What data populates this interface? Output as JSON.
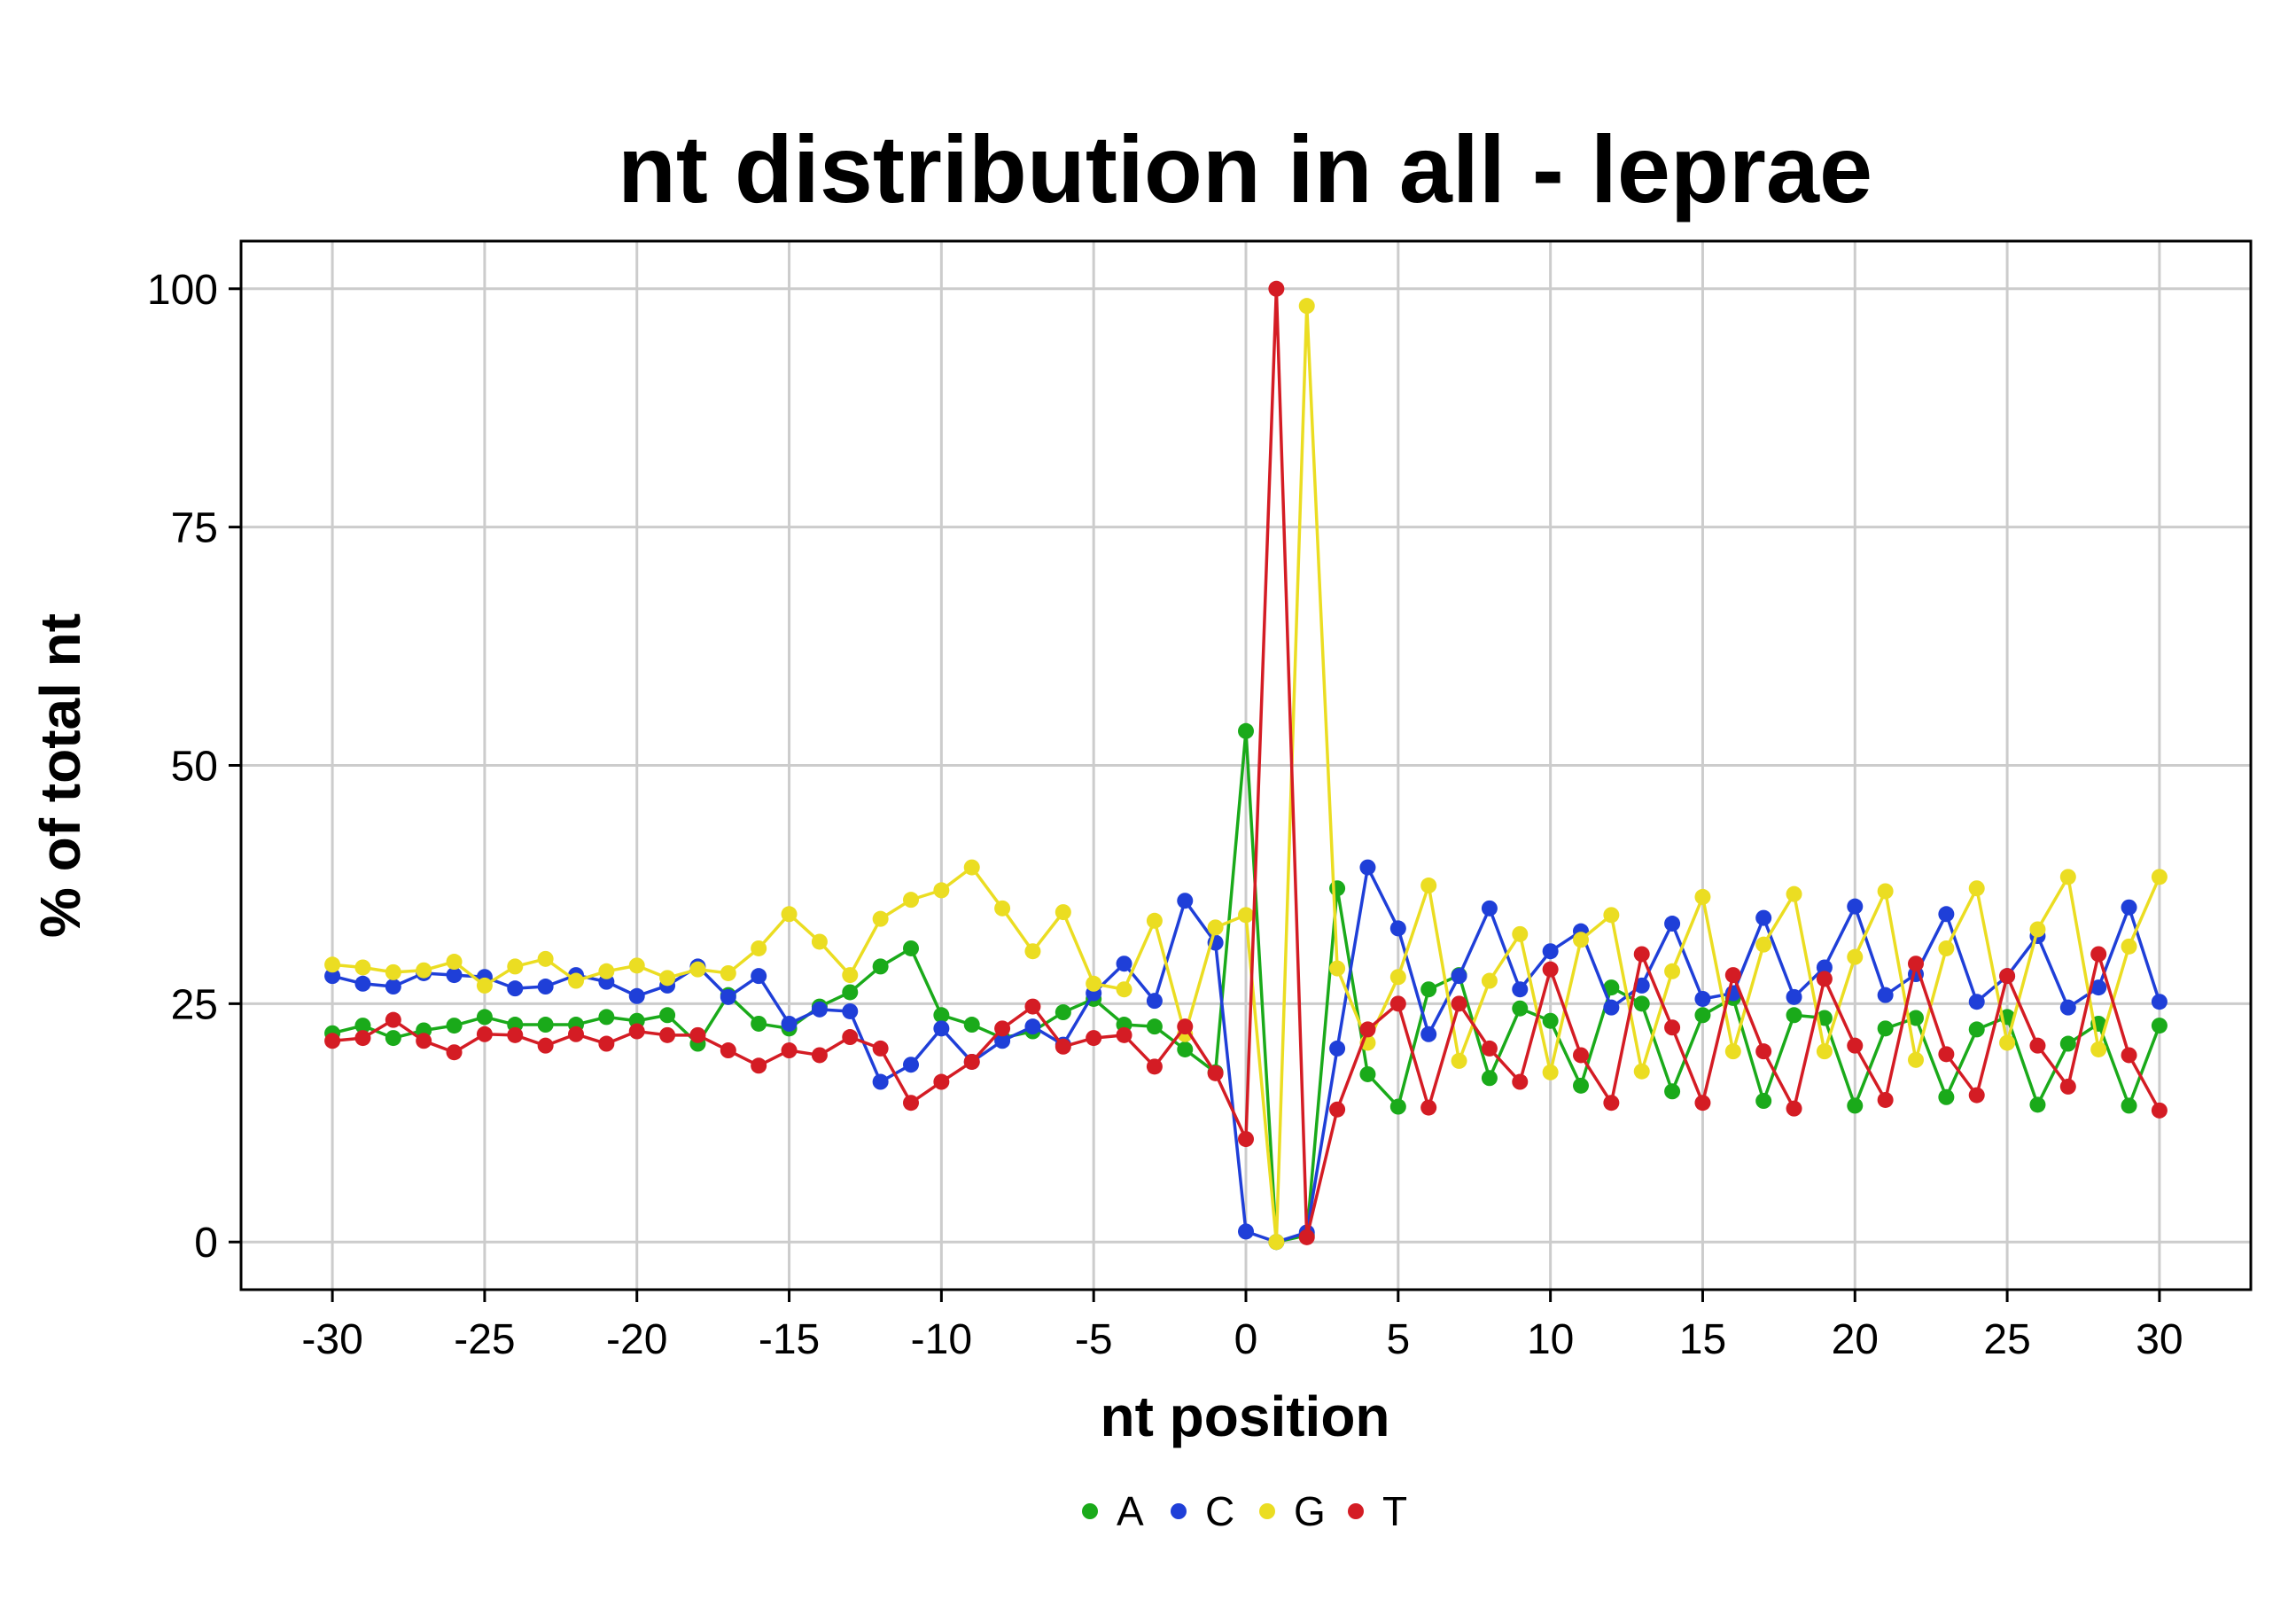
{
  "chart_data": {
    "type": "line",
    "title": "nt distribution in all - leprae",
    "xlabel": "nt position",
    "ylabel": "% of total nt",
    "xlim": [
      -33,
      33
    ],
    "ylim": [
      -5,
      105
    ],
    "x_ticks": [
      -30,
      -25,
      -20,
      -15,
      -10,
      -5,
      0,
      5,
      10,
      15,
      20,
      25,
      30
    ],
    "y_ticks": [
      0,
      25,
      50,
      75,
      100
    ],
    "grid": true,
    "legend_position": "bottom",
    "x": [
      -30,
      -29,
      -28,
      -27,
      -26,
      -25,
      -24,
      -23,
      -22,
      -21,
      -20,
      -19,
      -18,
      -17,
      -16,
      -15,
      -14,
      -13,
      -12,
      -11,
      -10,
      -9,
      -8,
      -7,
      -6,
      -5,
      -4,
      -3,
      -2,
      -1,
      0,
      1,
      2,
      3,
      4,
      5,
      6,
      7,
      8,
      9,
      10,
      11,
      12,
      13,
      14,
      15,
      16,
      17,
      18,
      19,
      20,
      21,
      22,
      23,
      24,
      25,
      26,
      27,
      28,
      29,
      30
    ],
    "series": [
      {
        "name": "A",
        "color": "#1aaa1a",
        "values": [
          21.9,
          22.7,
          21.4,
          22.2,
          22.7,
          23.6,
          22.8,
          22.8,
          22.8,
          23.6,
          23.2,
          23.8,
          20.8,
          25.9,
          22.9,
          22.4,
          24.7,
          26.2,
          28.9,
          30.8,
          23.8,
          22.8,
          21.4,
          22.1,
          24.1,
          25.5,
          22.8,
          22.6,
          20.2,
          17.8,
          53.6,
          0.0,
          0.7,
          37.1,
          17.6,
          14.2,
          26.5,
          28.0,
          17.2,
          24.5,
          23.2,
          16.4,
          26.7,
          25.0,
          15.8,
          23.8,
          25.6,
          14.8,
          23.8,
          23.5,
          14.3,
          22.4,
          23.5,
          15.2,
          22.3,
          23.6,
          14.4,
          20.8,
          22.9,
          14.3,
          22.7
        ]
      },
      {
        "name": "C",
        "color": "#1f3fd8",
        "values": [
          27.9,
          27.1,
          26.8,
          28.2,
          28.0,
          27.8,
          26.6,
          26.8,
          28.0,
          27.3,
          25.8,
          26.9,
          28.9,
          25.7,
          27.9,
          22.9,
          24.4,
          24.2,
          16.8,
          18.6,
          22.4,
          18.9,
          21.1,
          22.6,
          20.7,
          26.1,
          29.2,
          25.3,
          35.8,
          31.4,
          1.1,
          0.0,
          1.0,
          20.3,
          39.3,
          32.9,
          21.8,
          27.9,
          35.0,
          26.5,
          30.5,
          32.6,
          24.6,
          26.9,
          33.4,
          25.5,
          26.1,
          34.0,
          25.7,
          28.8,
          35.2,
          25.9,
          28.1,
          34.4,
          25.2,
          27.9,
          32.1,
          24.6,
          26.7,
          35.1,
          25.2
        ]
      },
      {
        "name": "G",
        "color": "#ebdd22",
        "values": [
          29.1,
          28.8,
          28.3,
          28.5,
          29.4,
          26.9,
          28.9,
          29.7,
          27.4,
          28.4,
          29.0,
          27.7,
          28.6,
          28.2,
          30.8,
          34.4,
          31.5,
          28.0,
          33.9,
          35.9,
          36.9,
          39.3,
          35.0,
          30.5,
          34.6,
          27.1,
          26.5,
          33.7,
          21.8,
          33.0,
          34.3,
          0.0,
          98.2,
          28.7,
          20.9,
          27.8,
          37.4,
          19.0,
          27.4,
          32.3,
          17.8,
          31.7,
          34.3,
          17.9,
          28.4,
          36.2,
          20.0,
          31.2,
          36.5,
          20.0,
          29.9,
          36.8,
          19.1,
          30.8,
          37.1,
          20.9,
          32.8,
          38.3,
          20.2,
          31.0,
          38.3
        ]
      },
      {
        "name": "T",
        "color": "#d41c24",
        "values": [
          21.1,
          21.4,
          23.3,
          21.1,
          19.9,
          21.8,
          21.7,
          20.6,
          21.8,
          20.8,
          22.1,
          21.7,
          21.7,
          20.1,
          18.5,
          20.1,
          19.6,
          21.5,
          20.3,
          14.6,
          16.8,
          18.9,
          22.4,
          24.7,
          20.5,
          21.4,
          21.7,
          18.4,
          22.6,
          17.7,
          10.8,
          100.0,
          0.5,
          13.9,
          22.3,
          25.0,
          14.1,
          25.0,
          20.3,
          16.8,
          28.6,
          19.6,
          14.6,
          30.2,
          22.5,
          14.6,
          28.0,
          20.0,
          14.0,
          27.6,
          20.6,
          14.9,
          29.2,
          19.7,
          15.4,
          27.9,
          20.6,
          16.3,
          30.2,
          19.6,
          13.8
        ]
      }
    ]
  }
}
